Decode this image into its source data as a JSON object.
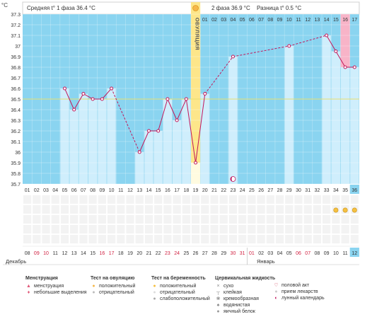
{
  "header": {
    "y_unit": "°C",
    "phase1_text": "Средняя t° 1 фаза 36.4 °C",
    "phase2_text": "2 фаза 36.9 °C",
    "diff_text": "Разница t° 0.5 °C",
    "ovulation_label": "ОВУЛЯЦИЯ",
    "month_dec": "Декабрь",
    "month_jan": "Январь"
  },
  "colors": {
    "sky": "#8ad4f0",
    "bar": "#cfeefc",
    "line": "#c2185b",
    "ovulation": "#fde68a",
    "menstruation": "#f8b4c8",
    "grid_base": "#a8a8a8"
  },
  "chart_data": {
    "type": "line",
    "y_ticks": [
      "37.3",
      "37.2",
      "37.1",
      "37",
      "36.9",
      "36.8",
      "36.7",
      "36.6",
      "36.5",
      "36.4",
      "36.3",
      "36.2",
      "36.1",
      "36",
      "35.9",
      "35.8",
      "35.7"
    ],
    "ylim": [
      35.7,
      37.3
    ],
    "baseline": 36.5,
    "cycle_days": [
      "01",
      "02",
      "03",
      "04",
      "05",
      "06",
      "07",
      "08",
      "09",
      "10",
      "11",
      "12",
      "13",
      "14",
      "15",
      "16",
      "17",
      "18",
      "19",
      "20",
      "21",
      "22",
      "23",
      "24",
      "25",
      "26",
      "27",
      "28",
      "29",
      "30",
      "31",
      "32",
      "33",
      "34",
      "35",
      "36"
    ],
    "top_days": [
      "01",
      "02",
      "03",
      "04",
      "05",
      "06",
      "07",
      "08",
      "09",
      "10",
      "11",
      "12",
      "13",
      "14",
      "15",
      "16",
      "17"
    ],
    "dates": [
      "08",
      "09",
      "10",
      "11",
      "12",
      "13",
      "14",
      "15",
      "16",
      "17",
      "18",
      "19",
      "20",
      "21",
      "22",
      "23",
      "24",
      "25",
      "26",
      "27",
      "28",
      "29",
      "30",
      "31",
      "01",
      "02",
      "03",
      "04",
      "05",
      "06",
      "07",
      "08",
      "09",
      "10",
      "11",
      "12"
    ],
    "red_dates": [
      2,
      3,
      9,
      10,
      16,
      17,
      23,
      24,
      25,
      30,
      31
    ],
    "temps": [
      null,
      null,
      null,
      null,
      36.6,
      36.4,
      36.55,
      36.5,
      36.5,
      36.6,
      null,
      null,
      36.0,
      36.2,
      36.2,
      36.5,
      36.3,
      36.5,
      35.9,
      36.55,
      null,
      null,
      36.9,
      null,
      null,
      null,
      null,
      null,
      37.0,
      null,
      null,
      null,
      37.1,
      36.95,
      36.8,
      36.8
    ],
    "solid_segments": [
      [
        5,
        6
      ],
      [
        6,
        7
      ],
      [
        7,
        8
      ],
      [
        8,
        9
      ],
      [
        9,
        10
      ],
      [
        13,
        14
      ],
      [
        14,
        15
      ],
      [
        15,
        16
      ],
      [
        16,
        17
      ],
      [
        17,
        18
      ],
      [
        18,
        19
      ],
      [
        19,
        20
      ],
      [
        33,
        34
      ],
      [
        34,
        35
      ],
      [
        35,
        36
      ]
    ],
    "dashed_segments": [
      [
        10,
        13
      ],
      [
        20,
        23
      ],
      [
        23,
        29
      ],
      [
        29,
        33
      ]
    ],
    "ovulation_day": 19,
    "menstruation_days": [
      35
    ],
    "lunar_day": 23,
    "pregnancy_test_days": [
      34,
      35,
      36
    ],
    "current_day": 36
  },
  "legend": [
    {
      "title": "Менструация",
      "items": [
        {
          "icon": "blood-drop-icon",
          "glyph": "▲",
          "color": "#e05a7a",
          "label": "менструация"
        },
        {
          "icon": "small-drop-icon",
          "glyph": "♦",
          "color": "#e05a7a",
          "label": "небольшие выделения"
        }
      ]
    },
    {
      "title": "Тест на овуляцию",
      "items": [
        {
          "icon": "test-positive-icon",
          "glyph": "●",
          "color": "#f5b84a",
          "label": "положительный"
        },
        {
          "icon": "test-negative-icon",
          "glyph": "●",
          "color": "#bbbbbb",
          "label": "отрицательный"
        }
      ]
    },
    {
      "title": "Тест на беременность",
      "items": [
        {
          "icon": "preg-positive-icon",
          "glyph": "●",
          "color": "#f5c040",
          "label": "положительный"
        },
        {
          "icon": "preg-negative-icon",
          "glyph": "●",
          "color": "#dddddd",
          "label": "отрицательный"
        },
        {
          "icon": "preg-weak-icon",
          "glyph": "●",
          "color": "#aaaaaa",
          "label": "слабоположительный"
        }
      ]
    },
    {
      "title": "Цервикальная жидкость",
      "items": [
        {
          "icon": "dry-icon",
          "glyph": "×",
          "color": "#888888",
          "label": "сухо"
        },
        {
          "icon": "sticky-icon",
          "glyph": "┬",
          "color": "#888888",
          "label": "клейкая"
        },
        {
          "icon": "creamy-icon",
          "glyph": "❀",
          "color": "#888888",
          "label": "кремообразная"
        },
        {
          "icon": "watery-icon",
          "glyph": "♠",
          "color": "#888888",
          "label": "водянистая"
        },
        {
          "icon": "egg-white-icon",
          "glyph": "●",
          "color": "#999999",
          "label": "яичный белок"
        }
      ]
    },
    {
      "title": "",
      "items": [
        {
          "icon": "heart-icon",
          "glyph": "♡",
          "color": "#d0405a",
          "label": "половой акт"
        },
        {
          "icon": "pill-icon",
          "glyph": "●",
          "color": "#cccccc",
          "label": "прием лекарств"
        },
        {
          "icon": "moon-icon",
          "glyph": "◐",
          "color": "#c0105a",
          "label": "лунный календарь"
        }
      ]
    }
  ]
}
